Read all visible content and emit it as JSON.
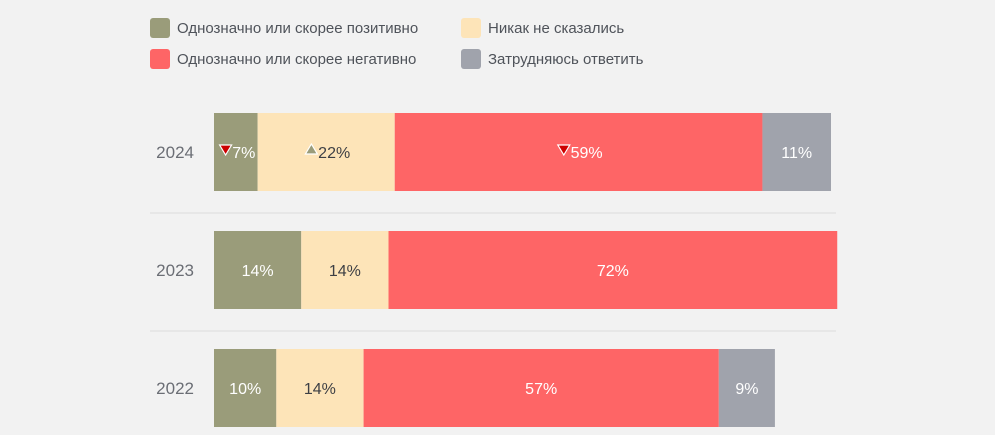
{
  "chart_data": {
    "type": "bar",
    "orientation": "horizontal",
    "stacked": true,
    "categories": [
      "2024",
      "2023",
      "2022"
    ],
    "series": [
      {
        "name": "Однозначно или скорее позитивно",
        "color": "#9a9c7a",
        "label_color": "#ffffff",
        "values": [
          7,
          14,
          10
        ],
        "labels": [
          "7%",
          "14%",
          "10%"
        ],
        "markers": [
          "down",
          null,
          null
        ]
      },
      {
        "name": "Никак не сказались",
        "color": "#fde4b8",
        "label_color": "#3d3f44",
        "values": [
          22,
          14,
          14
        ],
        "labels": [
          "22%",
          "14%",
          "14%"
        ],
        "markers": [
          "up",
          null,
          null
        ]
      },
      {
        "name": "Однозначно или скорее негативно",
        "color": "#fe6566",
        "label_color": "#ffffff",
        "values": [
          59,
          72,
          57
        ],
        "labels": [
          "59%",
          "72%",
          "57%"
        ],
        "markers": [
          "down",
          null,
          null
        ]
      },
      {
        "name": "Затрудняюсь ответить",
        "color": "#a0a3ac",
        "label_color": "#ffffff",
        "values": [
          11,
          0,
          9
        ],
        "labels": [
          "11%",
          "",
          "9%"
        ],
        "markers": [
          null,
          null,
          null
        ]
      }
    ],
    "xlim": [
      0,
      99
    ],
    "legend": "top-left",
    "marker_colors": {
      "down": "#cc0000",
      "up": "#9a9c7a"
    }
  }
}
